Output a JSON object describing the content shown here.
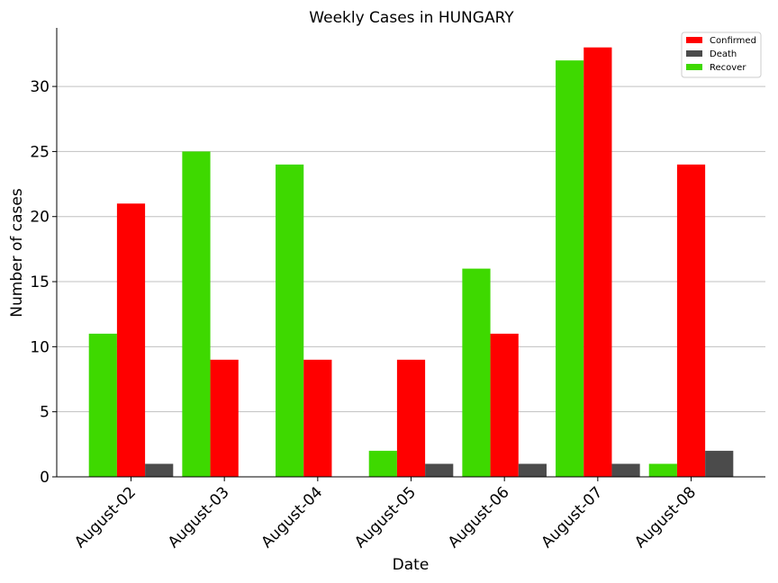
{
  "chart_data": {
    "type": "bar",
    "title": "Weekly Cases in HUNGARY",
    "xlabel": "Date",
    "ylabel": "Number of cases",
    "categories": [
      "August-02",
      "August-03",
      "August-04",
      "August-05",
      "August-06",
      "August-07",
      "August-08"
    ],
    "series": [
      {
        "name": "Recover",
        "color": "#3ed900",
        "values": [
          11,
          25,
          24,
          2,
          16,
          32,
          1
        ]
      },
      {
        "name": "Confirmed",
        "color": "#ff0000",
        "values": [
          21,
          9,
          9,
          9,
          11,
          33,
          24
        ]
      },
      {
        "name": "Death",
        "color": "#4b4b4b",
        "values": [
          1,
          0,
          0,
          1,
          1,
          1,
          2
        ]
      }
    ],
    "legend_order": [
      "Confirmed",
      "Death",
      "Recover"
    ],
    "ylim": [
      0,
      34.5
    ],
    "yticks": [
      0,
      5,
      10,
      15,
      20,
      25,
      30
    ],
    "grid": "y",
    "legend_position": "top-right"
  }
}
